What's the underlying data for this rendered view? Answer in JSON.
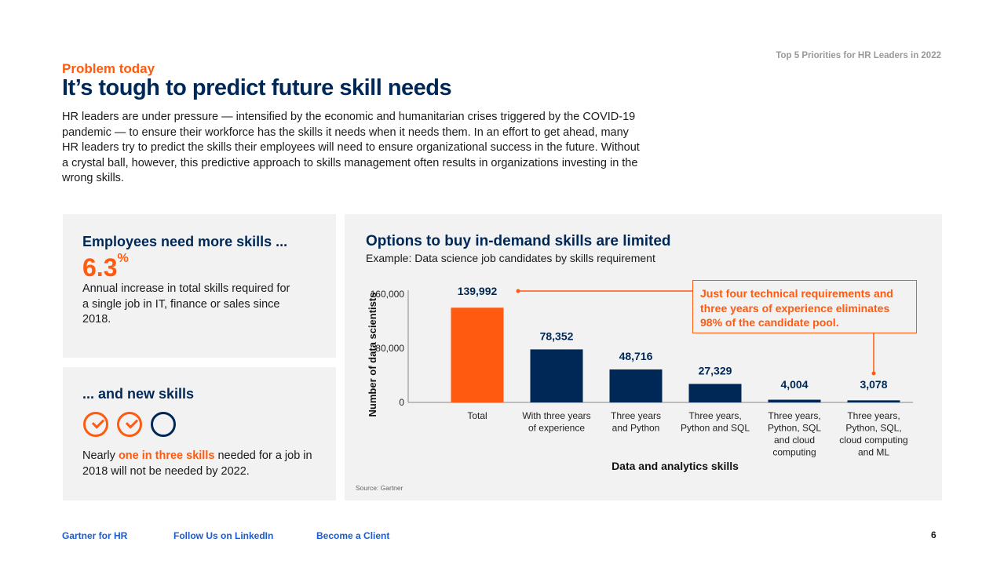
{
  "header": {
    "kicker": "Problem today",
    "title": "It’s tough to predict future skill needs",
    "doc_label": "Top 5 Priorities for HR Leaders in 2022",
    "intro": "HR leaders are under pressure — intensified by the economic and humanitarian crises triggered by the COVID-19 pandemic — to ensure their workforce has the skills it needs when it needs them. In an effort to get ahead, many HR leaders try to predict the skills their employees will need to ensure organizational success in the future. Without a crystal ball, however, this predictive approach to skills management often results in organizations investing in the wrong skills."
  },
  "panel1": {
    "heading": "Employees need more skills ...",
    "stat": "6.3",
    "stat_unit": "%",
    "text": "Annual increase in total skills required for a single job in IT, finance or sales since 2018."
  },
  "panel2": {
    "heading": "... and new skills",
    "icons": [
      "check-circle",
      "check-circle",
      "empty-circle"
    ],
    "text_before": "Nearly ",
    "text_highlight": "one in three skills",
    "text_after": " needed for a job in 2018 will not be needed by 2022."
  },
  "chart_panel": {
    "heading": "Options to buy in-demand skills are limited",
    "subheading": "Example: Data science job candidates by skills requirement",
    "callout": "Just four technical requirements and three years of experience eliminates 98% of the candidate pool.",
    "source": "Source: Gartner"
  },
  "chart_data": {
    "type": "bar",
    "categories": [
      "Total",
      "With three years of experience",
      "Three years and Python",
      "Three years, Python and SQL",
      "Three years, Python, SQL and cloud computing",
      "Three years, Python, SQL, cloud computing and ML"
    ],
    "category_lines": [
      [
        "Total"
      ],
      [
        "With three years",
        "of experience"
      ],
      [
        "Three years",
        "and Python"
      ],
      [
        "Three years,",
        "Python and SQL"
      ],
      [
        "Three years,",
        "Python, SQL",
        "and cloud",
        "computing"
      ],
      [
        "Three years,",
        "Python, SQL,",
        "cloud computing",
        "and ML"
      ]
    ],
    "values": [
      139992,
      78352,
      48716,
      27329,
      4004,
      3078
    ],
    "value_labels": [
      "139,992",
      "78,352",
      "48,716",
      "27,329",
      "4,004",
      "3,078"
    ],
    "xlabel": "Data and analytics skills",
    "ylabel": "Number of data scientists",
    "ylim": [
      0,
      160000
    ],
    "yticks": [
      0,
      80000,
      160000
    ],
    "ytick_labels": [
      "0",
      "80,000",
      "160,000"
    ],
    "grid": false,
    "colors": [
      "#ff5a0f",
      "#002856",
      "#002856",
      "#002856",
      "#002856",
      "#002856"
    ]
  },
  "footer": {
    "links": [
      "Gartner for HR",
      "Follow Us on LinkedIn",
      "Become a Client"
    ],
    "page": "6"
  }
}
